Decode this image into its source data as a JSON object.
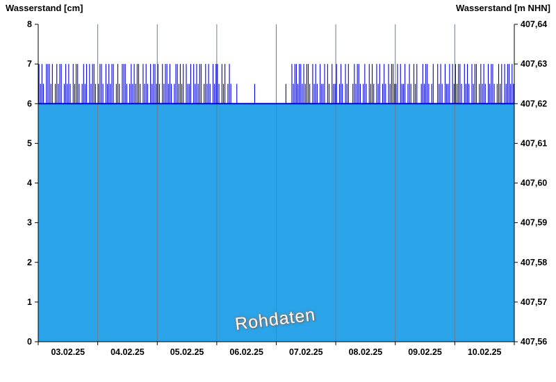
{
  "titles": {
    "left_axis_title": "Wasserstand [cm]",
    "right_axis_title": "Wasserstand [m NHN]"
  },
  "watermark": "Rohdaten",
  "chart_data": {
    "type": "area",
    "title": "",
    "xlabel": "",
    "ylabel_left": "Wasserstand [cm]",
    "ylabel_right": "Wasserstand [m NHN]",
    "left_axis": {
      "range": [
        0,
        8
      ],
      "ticks": [
        0,
        1,
        2,
        3,
        4,
        5,
        6,
        7,
        8
      ]
    },
    "right_axis": {
      "range": [
        407.56,
        407.64
      ],
      "tick_labels": [
        "407,56",
        "407,57",
        "407,58",
        "407,59",
        "407,60",
        "407,61",
        "407,62",
        "407,63",
        "407,64"
      ]
    },
    "x_categories": [
      "03.02.25",
      "04.02.25",
      "05.02.25",
      "06.02.25",
      "07.02.25",
      "08.02.25",
      "09.02.25",
      "10.02.25"
    ],
    "grid": "vertical-day-boundaries",
    "legend": "none",
    "baseline_cm": 6,
    "samples_per_day": 40,
    "value_map": {
      "a": 6,
      "b": 6.5,
      "c": 7
    },
    "encoded_values": "cbcbacccbcabcbccabcbcbacbccbabcbcacbccbabccbacbcbccabcbacccbabcbcbccbacbcbacbccbcbacbccbcbabccbcbcacbbcacbcbccabcbcbacbccbacbcabcbaaabaaaaaaaaaaabaaaaaaaaaaaaaaaaaaaabaaacbccbccbcbccbacbcbacbbcacbacbbcabcbacbcaabcbccbabcbacbcbacbcabcbacbccbbcacbbcabcbacbcaabcbccbabcaacbcbacbbcacbcbccbacbcbacbccabcbcbacbccbabcbcacbccbcb",
    "colors": {
      "fill": "#2aa3e8",
      "line": "#0000d8",
      "grid": "#6f7d86",
      "axis": "#000000",
      "background": "#ffffff",
      "watermark_text": "#ffffff"
    }
  }
}
